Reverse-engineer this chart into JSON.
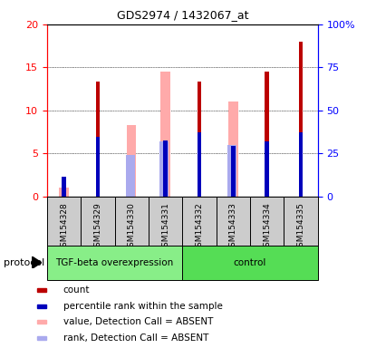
{
  "title": "GDS2974 / 1432067_at",
  "samples": [
    "GSM154328",
    "GSM154329",
    "GSM154330",
    "GSM154331",
    "GSM154332",
    "GSM154333",
    "GSM154334",
    "GSM154335"
  ],
  "red_count": [
    2.1,
    13.4,
    0.0,
    0.0,
    13.4,
    0.0,
    14.5,
    18.0
  ],
  "pink_value": [
    1.0,
    0.0,
    8.3,
    14.5,
    0.0,
    11.0,
    0.0,
    0.0
  ],
  "blue_pct": [
    2.3,
    6.9,
    0.0,
    6.5,
    7.5,
    5.9,
    6.4,
    7.5
  ],
  "lavender_rank": [
    0.0,
    0.0,
    4.8,
    6.4,
    0.0,
    6.0,
    0.0,
    0.0
  ],
  "ylim_left": [
    0,
    20
  ],
  "ylim_right": [
    0,
    100
  ],
  "yticks_left": [
    0,
    5,
    10,
    15,
    20
  ],
  "yticks_right": [
    0,
    25,
    50,
    75,
    100
  ],
  "y_right_labels": [
    "0",
    "25",
    "50",
    "75",
    "100%"
  ],
  "groups": [
    {
      "label": "TGF-beta overexpression",
      "start": 0,
      "end": 3,
      "color": "#88ee88"
    },
    {
      "label": "control",
      "start": 4,
      "end": 7,
      "color": "#55dd55"
    }
  ],
  "protocol_label": "protocol",
  "red_color": "#bb0000",
  "pink_color": "#ffaaaa",
  "blue_color": "#0000bb",
  "lavender_color": "#aaaaee",
  "gray_color": "#cccccc",
  "green1_color": "#88ee88",
  "green2_color": "#55dd55",
  "thin_bar_width": 0.12,
  "wide_bar_width": 0.28,
  "legend_items": [
    {
      "label": "count",
      "color": "#bb0000"
    },
    {
      "label": "percentile rank within the sample",
      "color": "#0000bb"
    },
    {
      "label": "value, Detection Call = ABSENT",
      "color": "#ffaaaa"
    },
    {
      "label": "rank, Detection Call = ABSENT",
      "color": "#aaaaee"
    }
  ]
}
